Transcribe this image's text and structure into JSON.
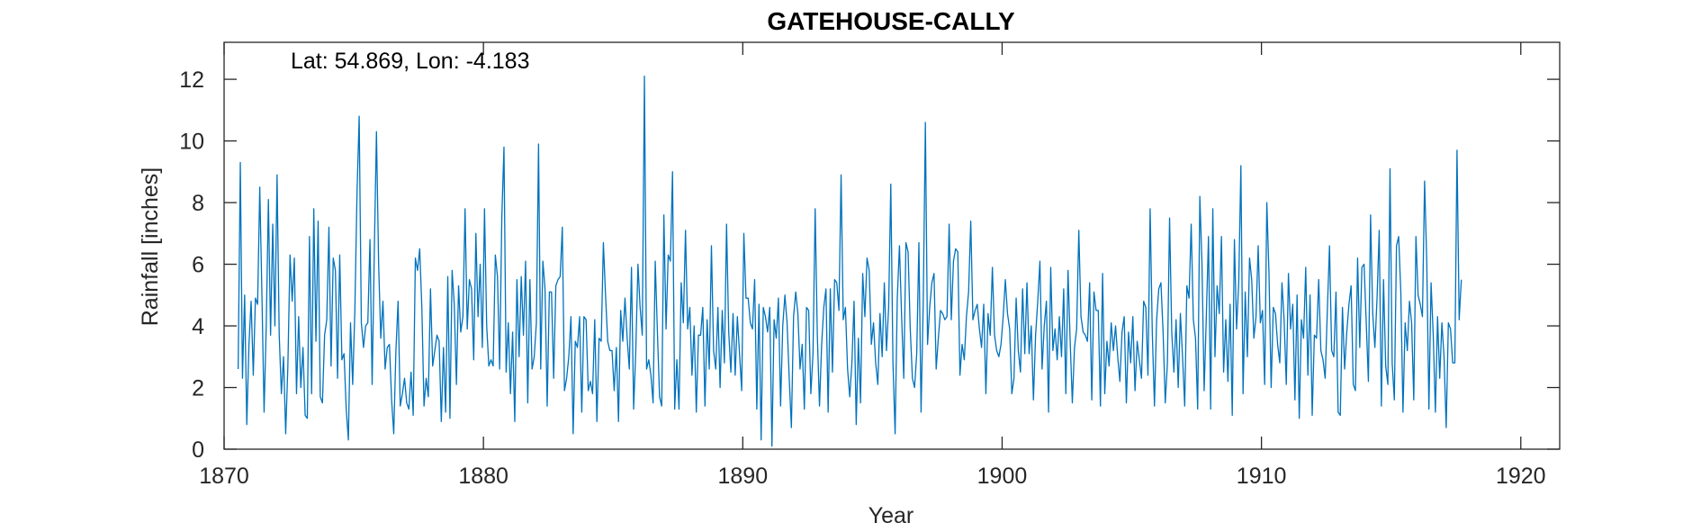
{
  "chart_data": {
    "type": "line",
    "title": "GATEHOUSE-CALLY",
    "annotation": "Lat: 54.869, Lon: -4.183",
    "xlabel": "Year",
    "ylabel": "Rainfall [inches]",
    "xlim": [
      1870,
      1921.5
    ],
    "ylim": [
      0,
      13.2
    ],
    "xticks": [
      1870,
      1880,
      1890,
      1900,
      1910,
      1920
    ],
    "yticks": [
      0,
      2,
      4,
      6,
      8,
      10,
      12
    ],
    "grid": false,
    "line_color": "#0072BD",
    "series": [
      {
        "x0": 1870.542,
        "dx": 0.08333,
        "values": [
          2.6,
          9.3,
          2.3,
          5.0,
          0.8,
          3.4,
          4.8,
          2.4,
          4.9,
          4.7,
          8.5,
          5.0,
          1.2,
          4.0,
          8.1,
          3.7,
          7.3,
          4.0,
          8.9,
          3.7,
          1.8,
          3.0,
          0.5,
          2.7,
          6.3,
          4.8,
          6.2,
          1.8,
          4.3,
          2.0,
          3.3,
          1.1,
          1.0,
          6.9,
          1.8,
          7.8,
          3.5,
          7.4,
          1.7,
          1.5,
          3.7,
          4.2,
          7.2,
          2.7,
          6.2,
          5.8,
          2.3,
          6.3,
          2.9,
          3.1,
          1.3,
          0.3,
          4.1,
          2.1,
          4.5,
          8.3,
          10.8,
          4.1,
          3.3,
          4.0,
          4.1,
          6.8,
          2.1,
          6.4,
          10.3,
          6.0,
          3.6,
          4.8,
          2.6,
          3.3,
          3.4,
          1.6,
          0.5,
          3.2,
          4.8,
          1.4,
          1.8,
          2.3,
          1.5,
          1.3,
          2.5,
          1.1,
          6.2,
          5.8,
          6.5,
          4.6,
          1.4,
          2.3,
          1.7,
          5.2,
          2.7,
          3.2,
          3.7,
          3.5,
          0.9,
          3.3,
          1.2,
          5.6,
          1.0,
          5.8,
          4.7,
          2.1,
          5.3,
          3.8,
          4.3,
          7.8,
          3.9,
          5.5,
          5.2,
          2.9,
          7.0,
          4.3,
          6.0,
          3.3,
          7.8,
          4.0,
          2.7,
          2.9,
          2.7,
          6.3,
          5.6,
          2.6,
          7.5,
          9.8,
          2.5,
          4.1,
          1.8,
          3.8,
          0.9,
          5.5,
          3.0,
          5.6,
          3.7,
          6.1,
          1.5,
          5.5,
          2.6,
          3.0,
          4.1,
          9.9,
          2.6,
          6.1,
          5.2,
          1.4,
          5.1,
          5.1,
          2.3,
          5.3,
          5.5,
          5.6,
          7.2,
          1.9,
          2.3,
          3.0,
          4.3,
          0.5,
          3.5,
          3.3,
          4.3,
          1.2,
          4.3,
          4.2,
          1.9,
          2.2,
          1.8,
          4.2,
          0.9,
          3.6,
          3.5,
          6.7,
          5.0,
          3.5,
          3.2,
          3.2,
          1.9,
          3.3,
          0.9,
          4.5,
          3.5,
          4.9,
          3.6,
          2.6,
          5.9,
          1.3,
          3.2,
          6.0,
          4.6,
          3.7,
          12.1,
          2.6,
          2.9,
          2.4,
          1.5,
          6.1,
          3.8,
          1.7,
          1.4,
          7.6,
          3.9,
          6.3,
          6.1,
          9.0,
          1.3,
          2.9,
          1.3,
          5.4,
          4.1,
          7.1,
          3.9,
          4.6,
          2.4,
          4.0,
          1.2,
          3.7,
          3.7,
          4.6,
          1.4,
          4.2,
          2.6,
          6.6,
          3.2,
          2.6,
          4.6,
          2.0,
          4.5,
          2.8,
          7.3,
          3.8,
          2.5,
          4.4,
          2.4,
          4.3,
          3.1,
          1.9,
          7.0,
          4.9,
          4.9,
          4.1,
          3.9,
          5.5,
          1.3,
          4.7,
          0.3,
          4.6,
          4.3,
          3.8,
          4.6,
          0.1,
          4.2,
          3.6,
          4.9,
          1.4,
          4.0,
          5.0,
          4.1,
          2.3,
          0.7,
          4.3,
          5.1,
          4.4,
          2.6,
          3.4,
          1.3,
          4.6,
          4.5,
          1.8,
          3.1,
          7.8,
          3.7,
          1.4,
          3.4,
          4.6,
          5.2,
          1.2,
          5.2,
          2.5,
          5.5,
          5.4,
          4.5,
          8.9,
          4.2,
          4.6,
          2.6,
          1.7,
          2.8,
          4.8,
          0.8,
          3.6,
          1.5,
          5.7,
          4.3,
          6.2,
          5.8,
          3.4,
          4.1,
          2.8,
          2.1,
          4.4,
          3.0,
          5.4,
          3.2,
          4.6,
          8.6,
          2.8,
          0.5,
          4.9,
          6.6,
          4.3,
          2.3,
          6.7,
          6.4,
          3.9,
          2.3,
          2.0,
          3.1,
          6.7,
          1.2,
          4.7,
          10.6,
          3.4,
          4.6,
          5.4,
          5.7,
          2.6,
          3.6,
          4.5,
          4.4,
          4.2,
          4.3,
          7.3,
          4.2,
          6.1,
          6.5,
          6.4,
          2.4,
          3.4,
          2.9,
          4.3,
          5.1,
          7.4,
          4.2,
          4.5,
          4.7,
          3.9,
          3.3,
          4.7,
          1.8,
          4.4,
          3.7,
          5.9,
          3.7,
          3.2,
          3.0,
          3.4,
          4.3,
          5.5,
          4.4,
          3.9,
          1.8,
          2.3,
          4.9,
          3.2,
          2.5,
          5.2,
          3.1,
          5.4,
          3.1,
          4.0,
          1.6,
          3.7,
          4.8,
          6.1,
          2.6,
          4.0,
          4.8,
          1.2,
          5.9,
          3.2,
          3.9,
          2.9,
          4.3,
          3.0,
          5.2,
          1.8,
          5.8,
          3.5,
          1.5,
          3.3,
          3.9,
          7.1,
          4.3,
          3.8,
          3.7,
          3.5,
          5.4,
          1.6,
          5.1,
          4.5,
          4.5,
          1.4,
          5.7,
          1.8,
          3.5,
          2.7,
          4.1,
          3.2,
          4.0,
          3.0,
          2.2,
          3.8,
          4.3,
          1.5,
          3.8,
          2.8,
          4.3,
          1.9,
          3.5,
          2.9,
          2.3,
          4.8,
          4.6,
          2.4,
          7.8,
          3.8,
          1.4,
          4.2,
          5.2,
          5.4,
          3.8,
          1.5,
          2.8,
          7.5,
          3.8,
          2.5,
          4.2,
          2.0,
          4.4,
          3.0,
          1.4,
          5.3,
          4.9,
          7.3,
          4.2,
          3.6,
          1.3,
          8.2,
          6.0,
          1.9,
          4.3,
          6.9,
          1.3,
          7.8,
          3.0,
          5.3,
          4.4,
          6.9,
          2.5,
          4.2,
          2.2,
          4.7,
          1.1,
          6.8,
          3.9,
          5.4,
          9.2,
          1.8,
          5.1,
          3.0,
          6.2,
          5.5,
          3.6,
          4.3,
          6.6,
          4.1,
          4.5,
          2.1,
          8.0,
          5.7,
          2.0,
          4.6,
          4.4,
          3.4,
          2.8,
          5.4,
          4.2,
          2.1,
          5.7,
          3.9,
          4.7,
          1.6,
          5.0,
          1.0,
          4.2,
          3.6,
          5.9,
          2.4,
          5.0,
          1.1,
          3.7,
          3.6,
          5.5,
          3.2,
          2.9,
          2.3,
          4.5,
          6.6,
          3.2,
          3.0,
          5.1,
          1.2,
          1.1,
          4.6,
          2.6,
          3.8,
          4.7,
          5.3,
          2.1,
          1.9,
          6.2,
          3.3,
          5.9,
          6.0,
          4.1,
          2.2,
          7.6,
          4.4,
          3.3,
          4.9,
          7.1,
          1.4,
          5.5,
          2.7,
          2.1,
          9.1,
          2.8,
          1.6,
          6.6,
          6.9,
          5.1,
          1.2,
          4.1,
          3.2,
          4.8,
          4.1,
          1.6,
          6.9,
          5.0,
          4.7,
          4.3,
          8.7,
          6.1,
          1.3,
          5.4,
          3.7,
          1.2,
          4.3,
          2.3,
          4.1,
          3.0,
          0.7,
          4.1,
          3.9,
          2.8,
          2.8,
          9.7,
          4.2,
          5.5
        ]
      }
    ]
  }
}
